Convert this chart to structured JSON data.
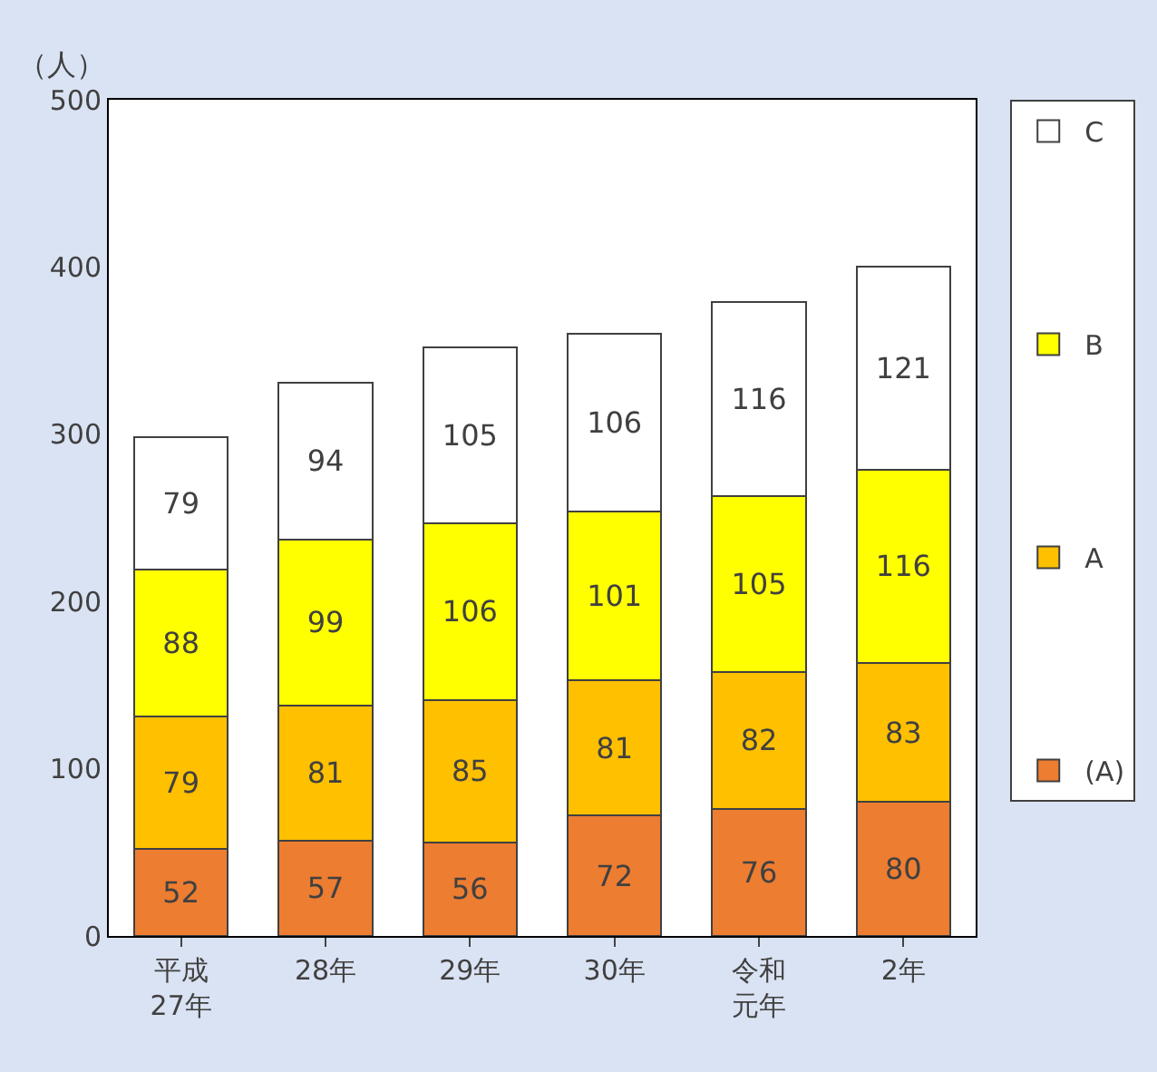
{
  "chart_data": {
    "type": "bar",
    "stacked": true,
    "ylabel": "（人）",
    "categories": [
      "平成27年",
      "28年",
      "29年",
      "30年",
      "令和元年",
      "2年"
    ],
    "series": [
      {
        "name": "(A)",
        "color": "#ed7d31",
        "values": [
          52,
          57,
          56,
          72,
          76,
          80
        ]
      },
      {
        "name": "A",
        "color": "#ffc000",
        "values": [
          79,
          81,
          85,
          81,
          82,
          83
        ]
      },
      {
        "name": "B",
        "color": "#ffff00",
        "values": [
          88,
          99,
          106,
          101,
          105,
          116
        ]
      },
      {
        "name": "C",
        "color": "#ffffff",
        "values": [
          79,
          94,
          105,
          106,
          116,
          121
        ]
      }
    ],
    "ylim": [
      0,
      500
    ],
    "yticks": [
      0,
      100,
      200,
      300,
      400,
      500
    ],
    "legend": "right",
    "data_labels": true
  }
}
